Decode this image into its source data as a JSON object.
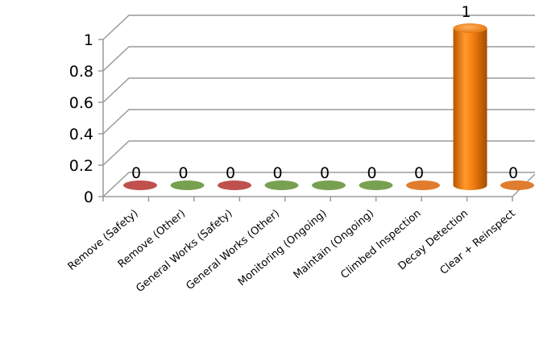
{
  "chart_data": {
    "type": "bar",
    "title": "",
    "xlabel": "",
    "ylabel": "",
    "ylim": [
      0,
      1
    ],
    "yticks": [
      "0",
      "0.2",
      "0.4",
      "0.6",
      "0.8",
      "1"
    ],
    "grid": true,
    "legend": "none",
    "style": "3d-cylinder",
    "categories": [
      "Remove (Safety)",
      "Remove (Other)",
      "General Works (Safety)",
      "General Works (Other)",
      "Monitoring (Ongoing)",
      "Maintain (Ongoing)",
      "Climbed Inspection",
      "Decay Detection",
      "Clear + Reinspect"
    ],
    "values": [
      0,
      0,
      0,
      0,
      0,
      0,
      0,
      1,
      0
    ],
    "data_labels": [
      "0",
      "0",
      "0",
      "0",
      "0",
      "0",
      "0",
      "1",
      "0"
    ],
    "colors": [
      "#c0504d",
      "#77a050",
      "#c0504d",
      "#77a050",
      "#77a050",
      "#77a050",
      "#e07c2e",
      "#f07d10",
      "#e07c2e"
    ]
  }
}
